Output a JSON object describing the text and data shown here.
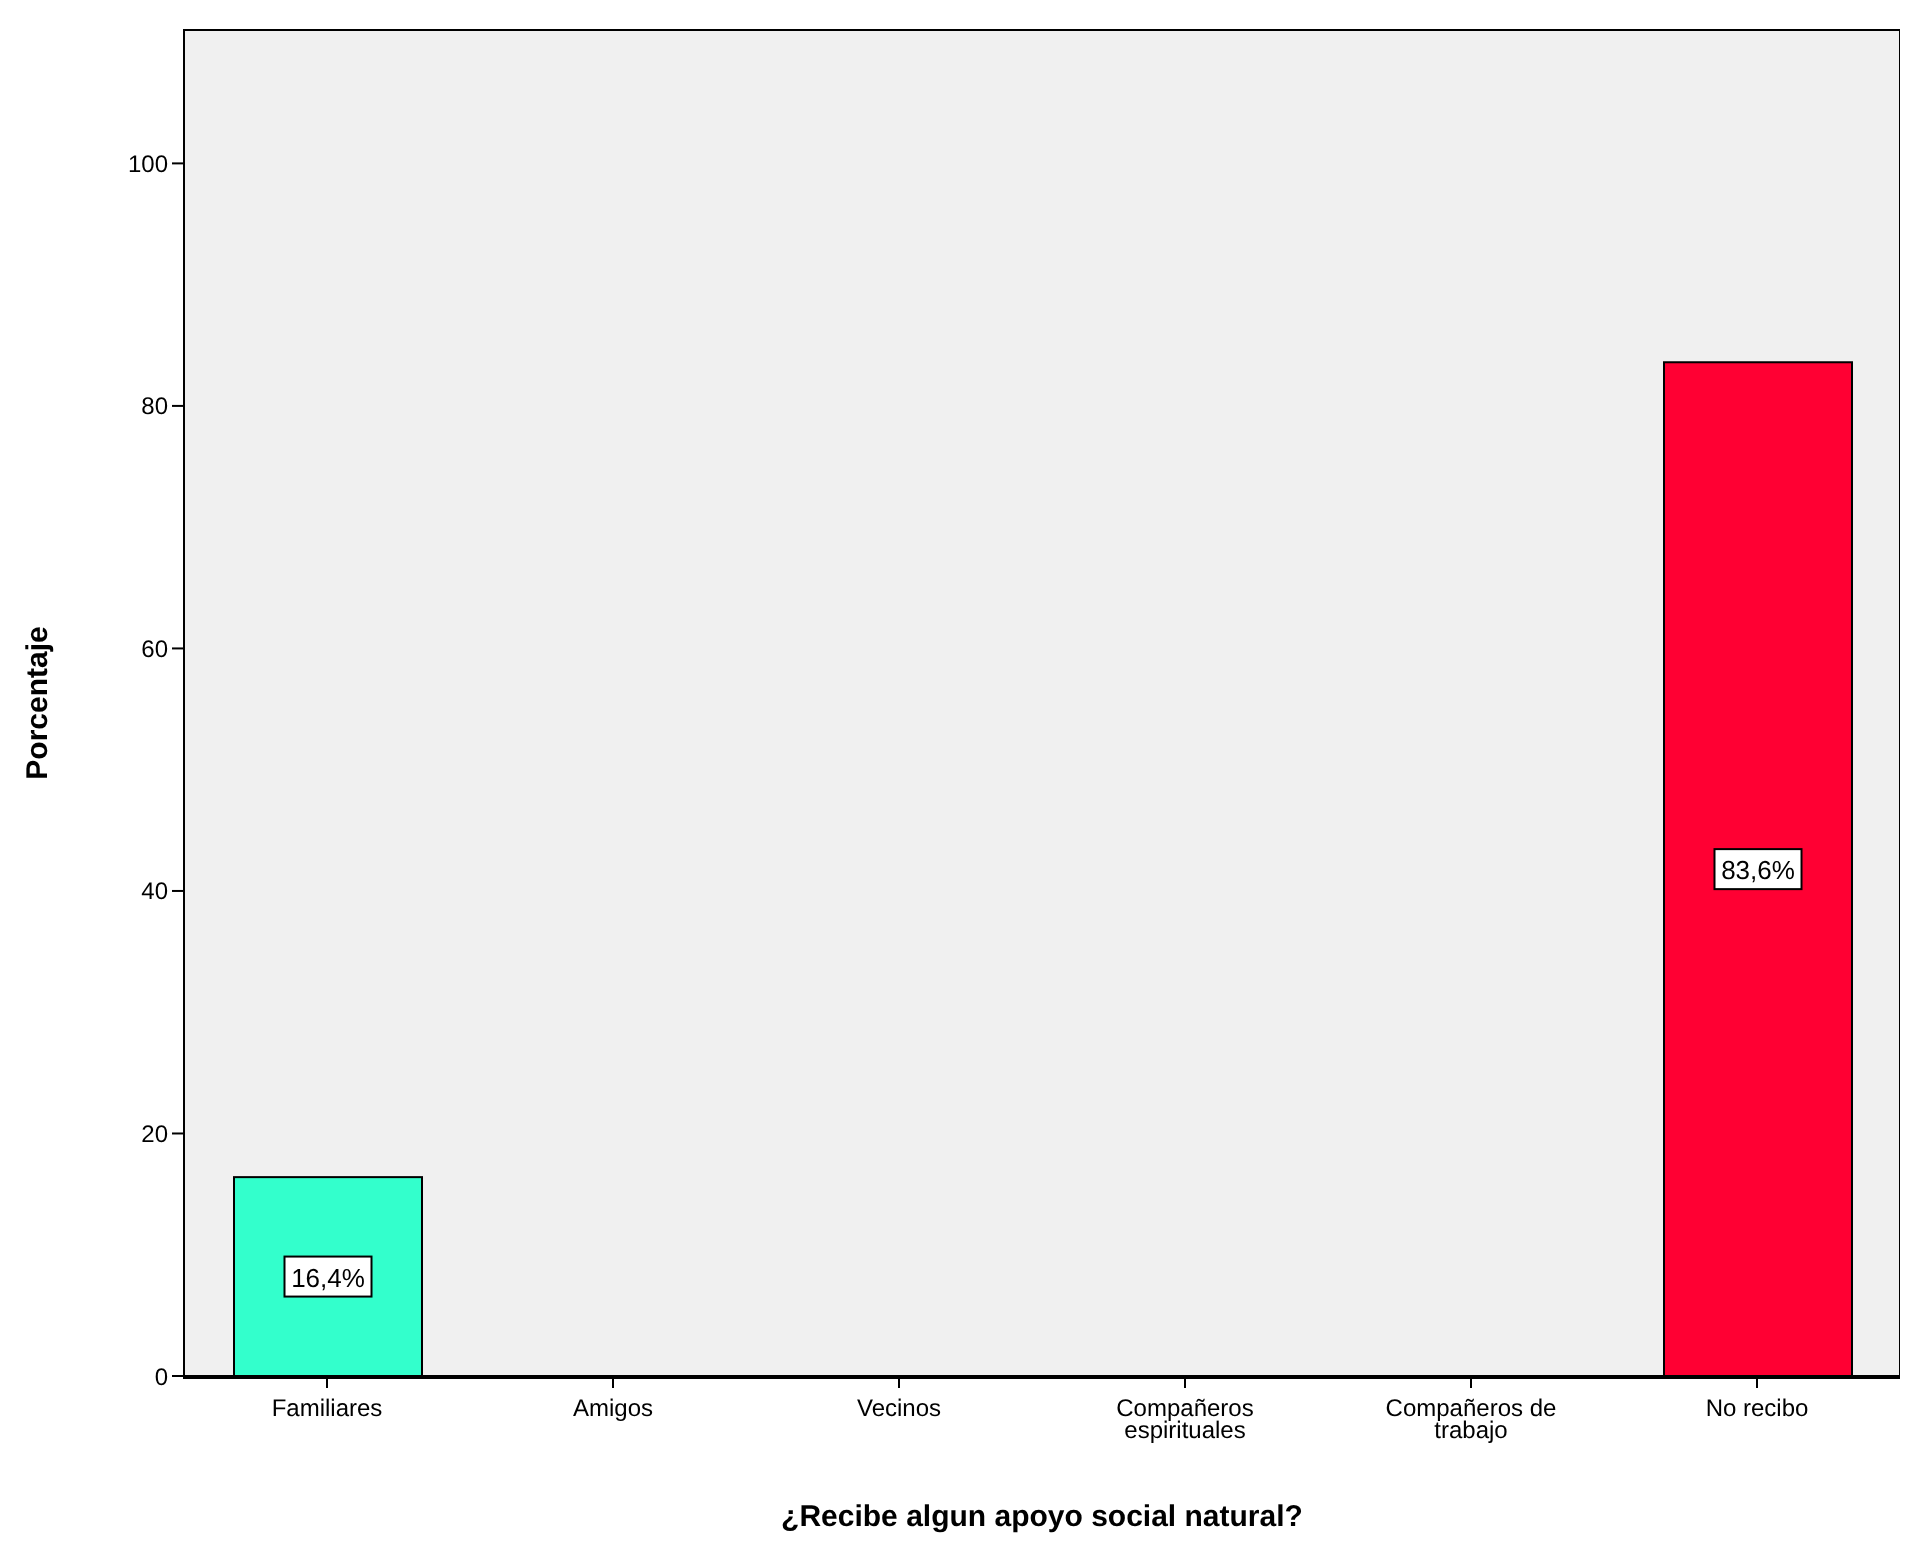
{
  "chart_data": {
    "type": "bar",
    "xlabel": "¿Recibe algun apoyo social natural?",
    "ylabel": "Porcentaje",
    "categories": [
      "Familiares",
      "Amigos",
      "Vecinos",
      "Compañeros espirituales",
      "Compañeros de trabajo",
      "No recibo"
    ],
    "values": [
      16.4,
      0,
      0,
      0,
      0,
      83.6
    ],
    "colors": [
      "#33ffcc",
      "#3366cc",
      "#66cc33",
      "#cc9933",
      "#9966cc",
      "#ff0033"
    ],
    "value_labels": [
      "16,4%",
      null,
      null,
      null,
      null,
      "83,6%"
    ],
    "ylim": [
      0,
      111
    ],
    "yticks": [
      0,
      20,
      40,
      60,
      80,
      100
    ]
  }
}
